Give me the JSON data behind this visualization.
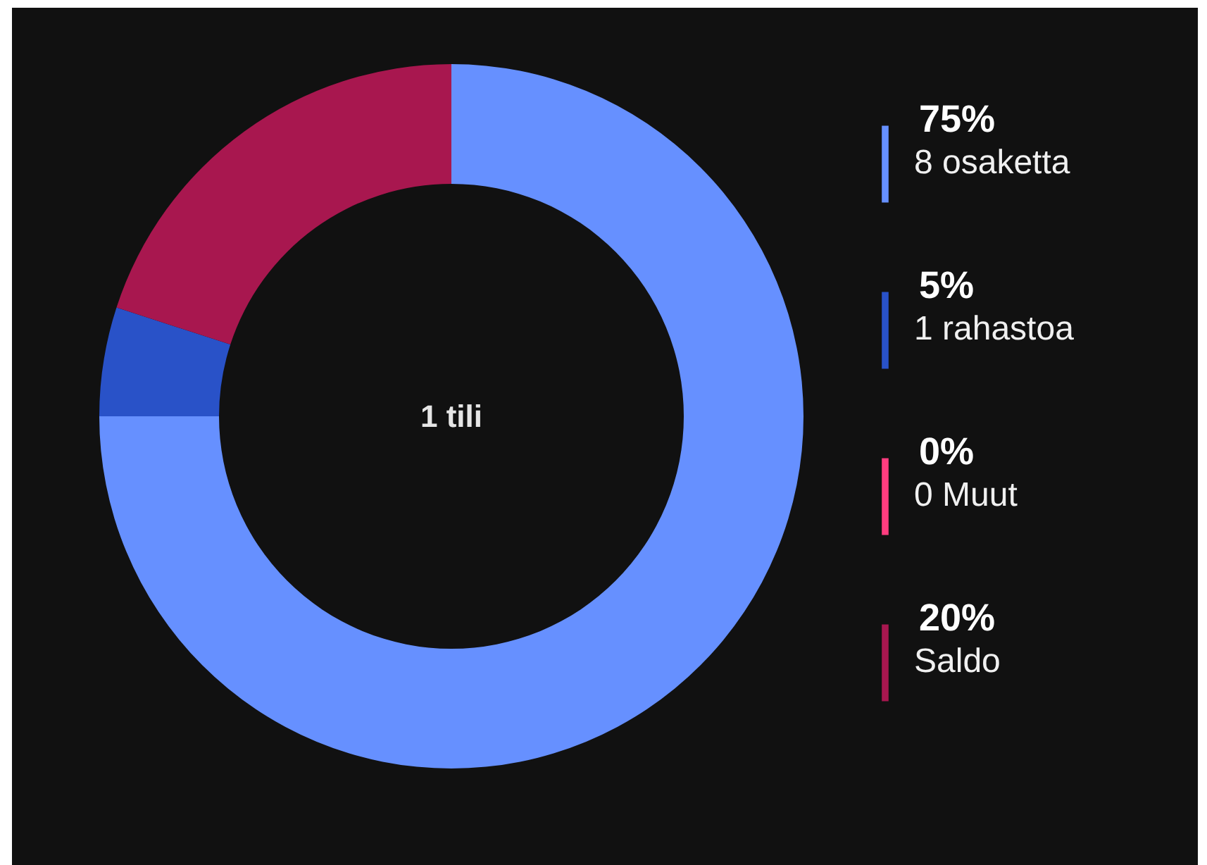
{
  "chart_data": {
    "type": "donut",
    "categories": [
      "8 osaketta",
      "1 rahastoa",
      "0 Muut",
      "Saldo"
    ],
    "values": [
      75,
      5,
      0,
      20
    ],
    "colors": [
      "#6690ff",
      "#2952c8",
      "#ff3d7f",
      "#a8174f"
    ],
    "value_labels": [
      "75%",
      "5%",
      "0%",
      "20%"
    ],
    "annotations": [
      "1 tili"
    ],
    "legend": "right"
  }
}
